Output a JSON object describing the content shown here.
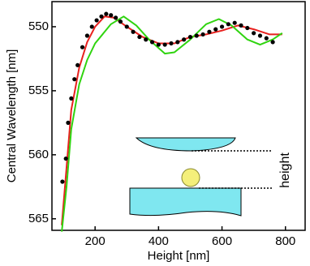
{
  "chart_data": {
    "type": "line",
    "x_label": "Height [nm]",
    "y_label": "Central Wavelength [nm]",
    "annotation": "height",
    "xlim": [
      64,
      862
    ],
    "xticks": [
      200,
      400,
      600,
      800
    ],
    "ylim": [
      548.04,
      565.9
    ],
    "y_inverted": true,
    "yticks": [
      550,
      555,
      560,
      565
    ],
    "series": [
      {
        "style": "markers",
        "color": "#000000",
        "x": [
          97,
          108,
          115,
          125,
          135,
          145,
          160,
          175,
          190,
          205,
          220,
          235,
          250,
          265,
          280,
          300,
          320,
          340,
          360,
          380,
          400,
          420,
          440,
          460,
          480,
          500,
          520,
          540,
          560,
          580,
          600,
          620,
          640,
          660,
          680,
          700,
          720,
          740,
          760
        ],
        "values": [
          562.1,
          560.3,
          557.5,
          555.6,
          554.1,
          553.0,
          551.6,
          550.7,
          550.0,
          549.5,
          549.2,
          549.0,
          549.1,
          549.3,
          549.6,
          550.0,
          550.4,
          550.8,
          551.0,
          551.2,
          551.4,
          551.4,
          551.3,
          551.2,
          551.0,
          550.8,
          550.7,
          550.6,
          550.4,
          550.2,
          550.0,
          549.8,
          549.7,
          549.9,
          550.1,
          550.5,
          550.7,
          550.9,
          551.2
        ]
      },
      {
        "style": "line",
        "color": "#e8201e",
        "x": [
          95,
          110,
          125,
          150,
          175,
          200,
          230,
          260,
          300,
          350,
          400,
          450,
          500,
          550,
          600,
          650,
          700,
          750,
          790
        ],
        "values": [
          565.5,
          561.0,
          556.5,
          553.2,
          551.2,
          550.0,
          549.2,
          549.3,
          550.0,
          550.8,
          551.3,
          551.3,
          550.8,
          550.6,
          550.3,
          549.9,
          550.2,
          550.6,
          550.6
        ]
      },
      {
        "style": "line",
        "color": "#2fd40f",
        "x": [
          95,
          110,
          125,
          150,
          175,
          200,
          250,
          290,
          330,
          370,
          420,
          450,
          500,
          550,
          590,
          630,
          680,
          720,
          760,
          790
        ],
        "values": [
          566.0,
          562.5,
          558.0,
          554.5,
          552.6,
          551.3,
          549.8,
          549.2,
          549.9,
          551.0,
          552.1,
          552.0,
          551.0,
          549.8,
          549.4,
          549.9,
          551.0,
          551.4,
          551.0,
          550.5
        ]
      }
    ]
  }
}
